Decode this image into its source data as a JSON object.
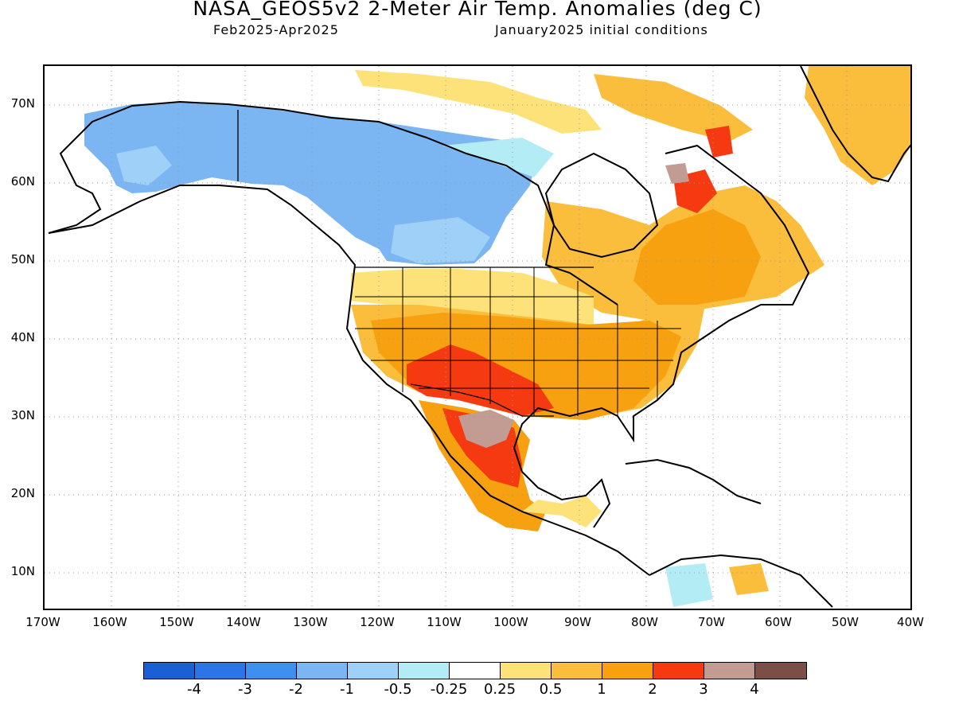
{
  "header": {
    "title": "NASA_GEOS5v2 2-Meter Air Temp. Anomalies (deg C)",
    "period": "Feb2025-Apr2025",
    "init": "January2025 initial conditions"
  },
  "axes": {
    "lat_labels": [
      "70N",
      "60N",
      "50N",
      "40N",
      "30N",
      "20N",
      "10N"
    ],
    "lon_labels": [
      "170W",
      "160W",
      "150W",
      "140W",
      "130W",
      "120W",
      "110W",
      "100W",
      "90W",
      "80W",
      "70W",
      "60W",
      "50W",
      "40W"
    ]
  },
  "colorbar": {
    "labels": [
      "-4",
      "-3",
      "-2",
      "-1",
      "-0.5",
      "-0.25",
      "0.25",
      "0.5",
      "1",
      "2",
      "3",
      "4"
    ],
    "colors": [
      "#1a60d4",
      "#2b75e8",
      "#3f8ff0",
      "#7bb6f3",
      "#9fd0f8",
      "#b4ecf6",
      "#ffffff",
      "#fde27a",
      "#fbbd3c",
      "#f7a010",
      "#f53a12",
      "#c29c92",
      "#7b4f45"
    ]
  },
  "chart_data": {
    "type": "heatmap",
    "title": "NASA_GEOS5v2 2-Meter Air Temp. Anomalies (deg C)",
    "lon_range": [
      -170,
      -40
    ],
    "lat_range": [
      5,
      75
    ],
    "grid": true,
    "units": "deg C",
    "contour_levels": [
      -4,
      -3,
      -2,
      -1,
      -0.5,
      -0.25,
      0.25,
      0.5,
      1,
      2,
      3,
      4
    ]
  }
}
